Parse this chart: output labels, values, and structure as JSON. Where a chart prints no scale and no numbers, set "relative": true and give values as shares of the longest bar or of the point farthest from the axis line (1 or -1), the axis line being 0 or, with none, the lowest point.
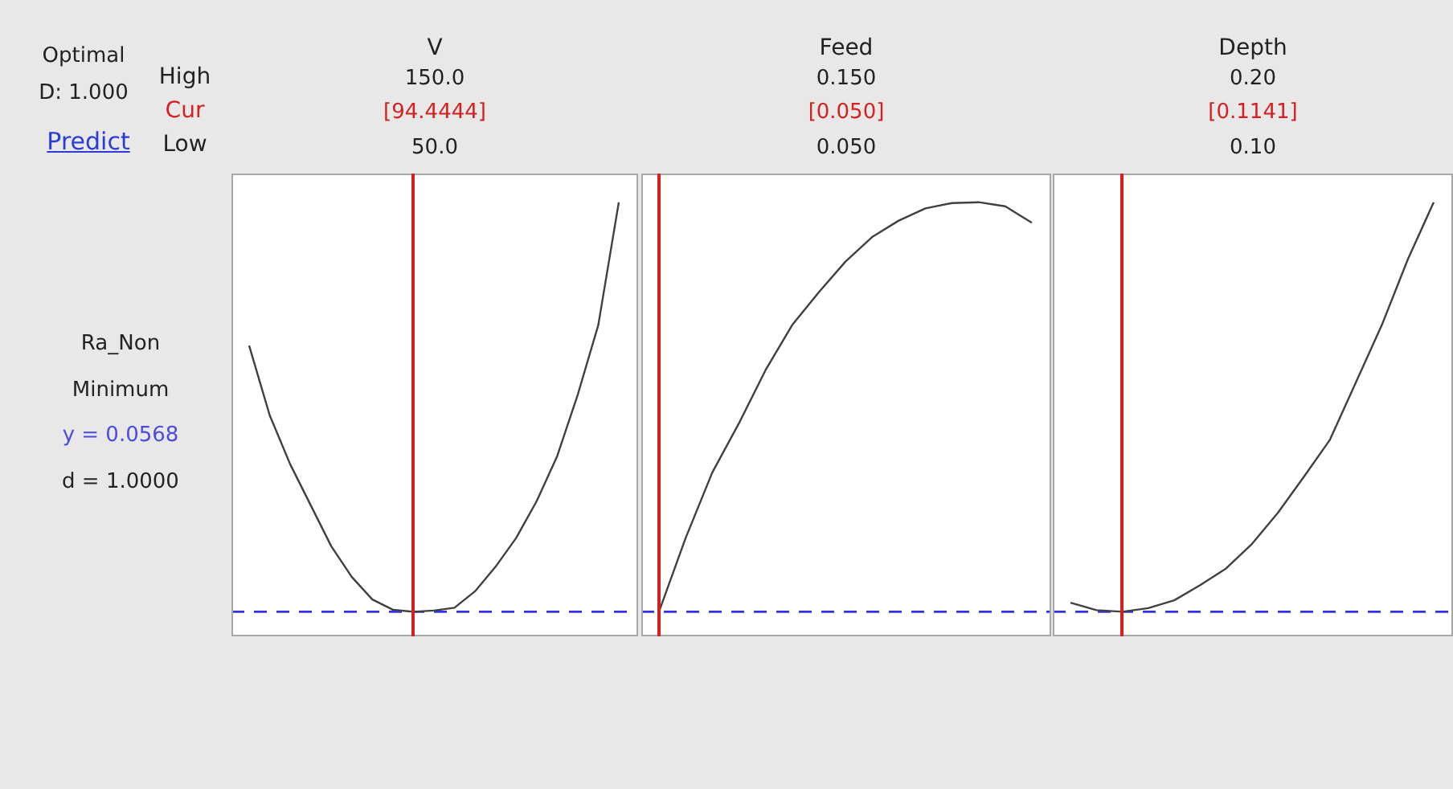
{
  "chart_data": [
    {
      "type": "other",
      "annotations": [
        "Optimal",
        "D: 1.000",
        "Predict",
        "High",
        "Cur",
        "Low",
        "Ra_Non",
        "Minimum",
        "y = 0.0568",
        "d = 1.0000"
      ]
    },
    {
      "type": "line",
      "title": "V",
      "annotations": [
        "150.0",
        "[94.4444]",
        "50.0"
      ],
      "relative": true,
      "tick_labels": false,
      "grid": false,
      "marker": "none",
      "categories": [
        null,
        null,
        null,
        null,
        null,
        null,
        null,
        null,
        null,
        null,
        null,
        null,
        null,
        null,
        null,
        null,
        null,
        null,
        null
      ],
      "series": [
        {
          "color": "#404040",
          "values": [
            0.65,
            0.48,
            0.36,
            0.26,
            0.16,
            0.085,
            0.03,
            0.005,
            0,
            0.003,
            0.01,
            0.05,
            0.11,
            0.18,
            0.27,
            0.38,
            0.53,
            0.7,
            1
          ]
        }
      ],
      "ref_lines": [
        {
          "axis": "y",
          "value": 0,
          "color": "#3333e6",
          "line_style": "dashed"
        }
      ]
    },
    {
      "type": "line",
      "title": "Feed",
      "annotations": [
        "0.150",
        "[0.050]",
        "0.050"
      ],
      "relative": true,
      "tick_labels": false,
      "grid": false,
      "marker": "none",
      "categories": [
        null,
        null,
        null,
        null,
        null,
        null,
        null,
        null,
        null,
        null,
        null,
        null,
        null,
        null,
        null
      ],
      "series": [
        {
          "color": "#404040",
          "values": [
            0,
            0.18,
            0.34,
            0.46,
            0.59,
            0.7,
            0.78,
            0.855,
            0.915,
            0.955,
            0.985,
            0.998,
            1,
            0.99,
            0.95
          ]
        }
      ],
      "ref_lines": [
        {
          "axis": "y",
          "value": 0,
          "color": "#3333e6",
          "line_style": "dashed"
        }
      ]
    },
    {
      "type": "line",
      "title": "Depth",
      "annotations": [
        "0.20",
        "[0.1141]",
        "0.10"
      ],
      "relative": true,
      "tick_labels": false,
      "grid": false,
      "marker": "none",
      "categories": [
        null,
        null,
        null,
        null,
        null,
        null,
        null,
        null,
        null,
        null,
        null,
        null,
        null,
        null,
        null
      ],
      "series": [
        {
          "color": "#404040",
          "values": [
            0.022,
            0.004,
            0,
            0.009,
            0.028,
            0.065,
            0.106,
            0.166,
            0.242,
            0.33,
            0.42,
            0.56,
            0.7,
            0.86,
            1
          ]
        }
      ],
      "ref_lines": [
        {
          "axis": "y",
          "value": 0,
          "color": "#3333e6",
          "line_style": "dashed"
        }
      ]
    }
  ]
}
